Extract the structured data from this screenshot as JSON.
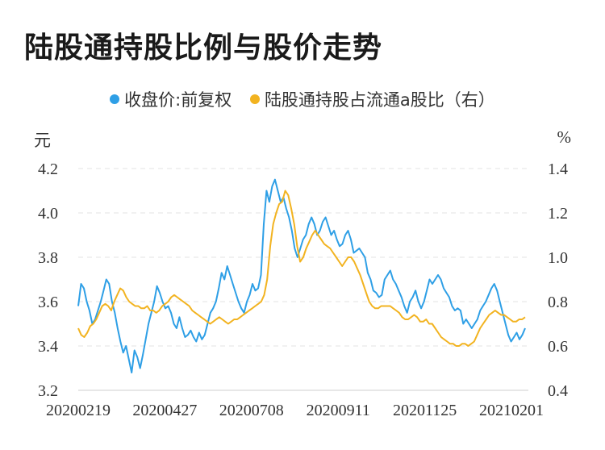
{
  "title": "陆股通持股比例与股价走势",
  "chart_data": {
    "type": "line",
    "title": "陆股通持股比例与股价走势",
    "left_unit": "元",
    "right_unit": "%",
    "left_axis": {
      "ylim": [
        3.2,
        4.2
      ],
      "ticks": [
        "3.2",
        "3.4",
        "3.6",
        "3.8",
        "4.0",
        "4.2"
      ]
    },
    "right_axis": {
      "ylim": [
        0.4,
        1.4
      ],
      "ticks": [
        "0.4",
        "0.6",
        "0.8",
        "1.0",
        "1.2",
        "1.4"
      ]
    },
    "x_tick_labels": [
      "20200219",
      "20200427",
      "20200708",
      "20200911",
      "20201125",
      "20210201"
    ],
    "grid": "horizontal dashed",
    "legend_position": "top-center",
    "series": [
      {
        "name": "收盘价:前复权",
        "axis": "left",
        "color": "#2e9fe6",
        "values": [
          3.58,
          3.68,
          3.66,
          3.6,
          3.56,
          3.5,
          3.52,
          3.56,
          3.6,
          3.65,
          3.7,
          3.68,
          3.6,
          3.55,
          3.48,
          3.42,
          3.37,
          3.4,
          3.34,
          3.28,
          3.38,
          3.35,
          3.3,
          3.36,
          3.43,
          3.5,
          3.55,
          3.6,
          3.67,
          3.64,
          3.6,
          3.57,
          3.58,
          3.55,
          3.5,
          3.48,
          3.53,
          3.48,
          3.44,
          3.45,
          3.47,
          3.44,
          3.42,
          3.46,
          3.43,
          3.45,
          3.5,
          3.55,
          3.57,
          3.6,
          3.66,
          3.73,
          3.7,
          3.76,
          3.72,
          3.68,
          3.64,
          3.6,
          3.57,
          3.55,
          3.6,
          3.63,
          3.68,
          3.65,
          3.66,
          3.72,
          3.95,
          4.1,
          4.05,
          4.12,
          4.15,
          4.1,
          4.05,
          4.07,
          4.02,
          3.98,
          3.92,
          3.84,
          3.8,
          3.84,
          3.88,
          3.9,
          3.95,
          3.98,
          3.95,
          3.9,
          3.92,
          3.96,
          3.98,
          3.94,
          3.9,
          3.92,
          3.88,
          3.85,
          3.86,
          3.9,
          3.92,
          3.88,
          3.82,
          3.83,
          3.84,
          3.82,
          3.8,
          3.73,
          3.7,
          3.65,
          3.64,
          3.62,
          3.63,
          3.7,
          3.72,
          3.74,
          3.7,
          3.68,
          3.65,
          3.62,
          3.58,
          3.55,
          3.6,
          3.62,
          3.65,
          3.6,
          3.57,
          3.6,
          3.65,
          3.7,
          3.68,
          3.7,
          3.72,
          3.7,
          3.66,
          3.64,
          3.62,
          3.58,
          3.56,
          3.57,
          3.56,
          3.5,
          3.52,
          3.5,
          3.48,
          3.5,
          3.52,
          3.56,
          3.58,
          3.6,
          3.63,
          3.66,
          3.68,
          3.65,
          3.6,
          3.55,
          3.5,
          3.45,
          3.42,
          3.44,
          3.46,
          3.43,
          3.45,
          3.48
        ]
      },
      {
        "name": "陆股通持股占流通a股比（右）",
        "axis": "right",
        "color": "#f2b320",
        "values": [
          0.68,
          0.65,
          0.64,
          0.66,
          0.69,
          0.7,
          0.72,
          0.75,
          0.78,
          0.79,
          0.78,
          0.76,
          0.8,
          0.83,
          0.86,
          0.85,
          0.82,
          0.8,
          0.79,
          0.78,
          0.78,
          0.77,
          0.77,
          0.78,
          0.76,
          0.76,
          0.75,
          0.76,
          0.78,
          0.79,
          0.8,
          0.82,
          0.83,
          0.82,
          0.81,
          0.8,
          0.79,
          0.78,
          0.76,
          0.75,
          0.74,
          0.73,
          0.72,
          0.71,
          0.7,
          0.71,
          0.72,
          0.73,
          0.72,
          0.71,
          0.7,
          0.71,
          0.72,
          0.72,
          0.73,
          0.74,
          0.75,
          0.76,
          0.77,
          0.78,
          0.79,
          0.8,
          0.83,
          0.9,
          1.05,
          1.15,
          1.2,
          1.24,
          1.25,
          1.3,
          1.28,
          1.22,
          1.15,
          1.05,
          0.98,
          1.0,
          1.04,
          1.07,
          1.1,
          1.12,
          1.1,
          1.08,
          1.06,
          1.05,
          1.04,
          1.02,
          1.0,
          0.98,
          0.96,
          0.98,
          1.0,
          1.0,
          0.98,
          0.95,
          0.92,
          0.88,
          0.84,
          0.8,
          0.78,
          0.77,
          0.77,
          0.78,
          0.78,
          0.78,
          0.78,
          0.77,
          0.76,
          0.75,
          0.73,
          0.72,
          0.72,
          0.73,
          0.74,
          0.73,
          0.71,
          0.71,
          0.72,
          0.7,
          0.7,
          0.68,
          0.66,
          0.64,
          0.63,
          0.62,
          0.61,
          0.61,
          0.6,
          0.6,
          0.61,
          0.61,
          0.6,
          0.61,
          0.62,
          0.65,
          0.68,
          0.7,
          0.72,
          0.74,
          0.75,
          0.76,
          0.75,
          0.74,
          0.74,
          0.73,
          0.72,
          0.71,
          0.71,
          0.72,
          0.72,
          0.73
        ]
      }
    ]
  }
}
